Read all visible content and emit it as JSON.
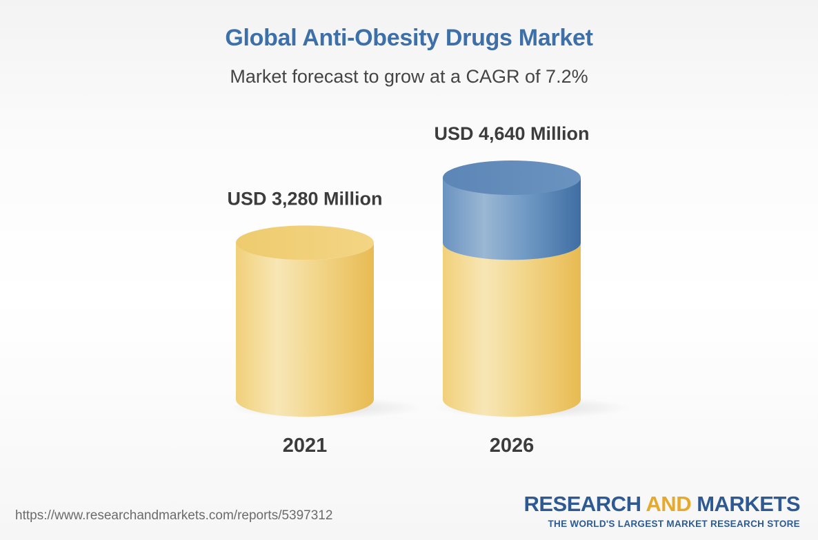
{
  "chart_data": {
    "type": "bar",
    "title": "Global Anti-Obesity Drugs Market",
    "subtitle": "Market forecast to grow at a CAGR of 7.2%",
    "categories": [
      "2021",
      "2026"
    ],
    "values": [
      3280,
      4640
    ],
    "value_labels": [
      "USD 3,280 Million",
      "USD 4,640 Million"
    ],
    "unit": "USD Million",
    "stacked_top_highlight": {
      "category": "2026",
      "from": 3280,
      "to": 4640
    },
    "colors": {
      "base": "#f0cd73",
      "growth": "#5f8dbd"
    }
  },
  "footer": {
    "url": "https://www.researchandmarkets.com/reports/5397312",
    "brand_part1": "RESEARCH",
    "brand_part2": "AND",
    "brand_part3": "MARKETS",
    "tagline": "THE WORLD'S LARGEST MARKET RESEARCH STORE"
  }
}
